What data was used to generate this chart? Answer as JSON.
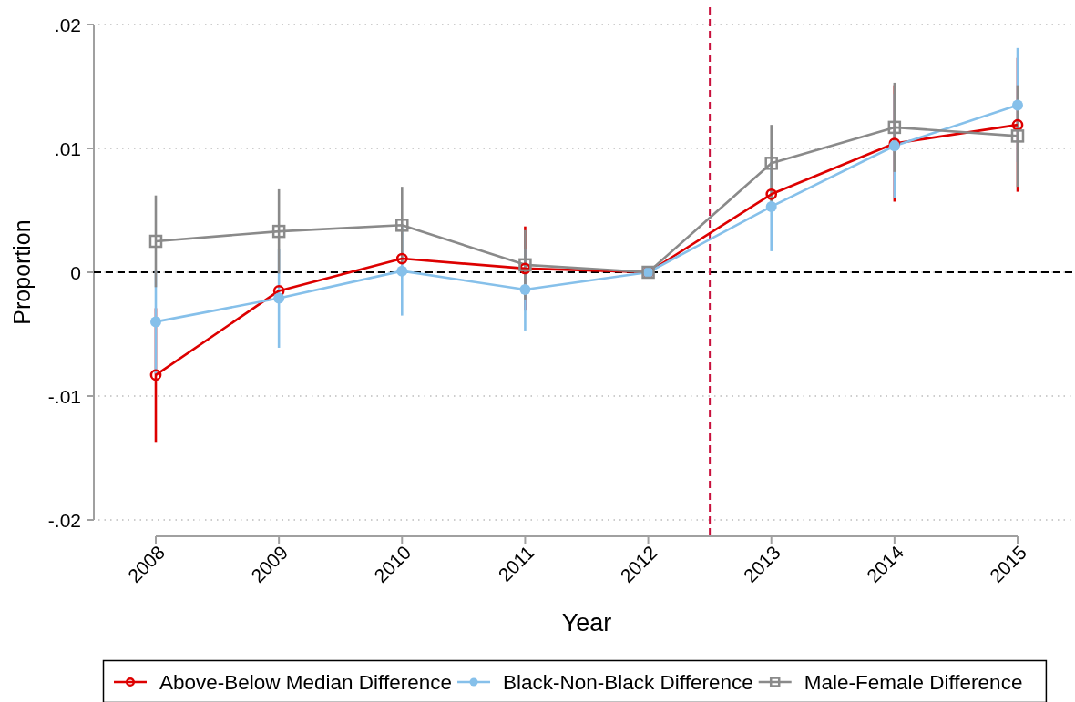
{
  "chart_data": {
    "type": "line",
    "xlabel": "Year",
    "ylabel": "Proportion",
    "x": [
      2008,
      2009,
      2010,
      2011,
      2012,
      2013,
      2014,
      2015
    ],
    "xlim": [
      2008,
      2015
    ],
    "xticks": [
      2008,
      2009,
      2010,
      2011,
      2012,
      2013,
      2014,
      2015
    ],
    "ylim": [
      -0.02,
      0.02
    ],
    "yticks": [
      {
        "value": -0.02,
        "label": "-.02"
      },
      {
        "value": -0.01,
        "label": "-.01"
      },
      0,
      {
        "value": 0.01,
        "label": ".01"
      },
      {
        "value": 0.02,
        "label": ".02"
      }
    ],
    "grid": "y",
    "legend": "bottom",
    "line_style": "solid",
    "series": [
      {
        "name": "Above-Below Median Difference",
        "color": "#dd0000",
        "marker": "circle",
        "values": [
          -0.0083,
          -0.0015,
          0.0011,
          0.0003,
          0,
          0.0063,
          0.0104,
          0.0119
        ],
        "errors": [
          0.0054,
          null,
          null,
          0.0034,
          null,
          null,
          0.0047,
          0.0054
        ]
      },
      {
        "name": "Black-Non-Black Difference",
        "color": "#86c0ea",
        "marker": "circle",
        "values": [
          -0.004,
          -0.0021,
          0.0001,
          -0.0014,
          0,
          0.0053,
          0.0102,
          0.0135
        ],
        "errors": [
          0.0042,
          0.004,
          0.0036,
          0.0033,
          null,
          0.0036,
          0.0042,
          0.0046
        ]
      },
      {
        "name": "Male-Female Difference",
        "color": "#8a8a8a",
        "marker": "square",
        "values": [
          0.0025,
          0.0033,
          0.0038,
          0.0006,
          0,
          0.0088,
          0.0117,
          0.011
        ],
        "errors": [
          0.0037,
          0.0034,
          0.0031,
          0.0028,
          null,
          0.0031,
          0.0036,
          0.0041
        ]
      }
    ],
    "ref_lines": [
      {
        "axis": "y",
        "value": 0,
        "color": "#000000",
        "line_style": "dashed"
      },
      {
        "axis": "x",
        "value": 2012.5,
        "color": "#c8103c",
        "line_style": "dashed"
      }
    ]
  }
}
